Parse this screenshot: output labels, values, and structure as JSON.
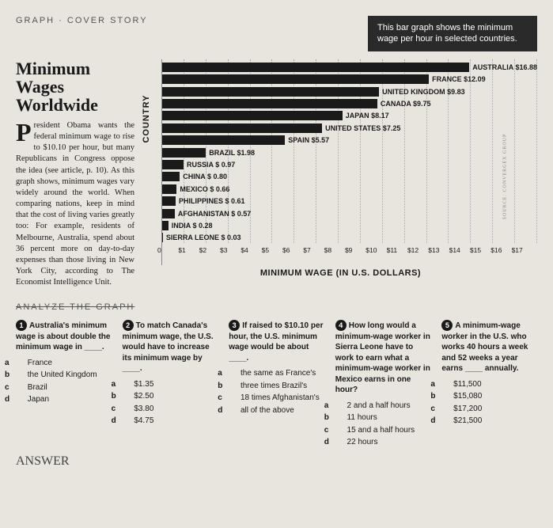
{
  "section_label": "GRAPH · COVER STORY",
  "callout": "This bar graph shows the minimum wage per hour in selected countries.",
  "title_l1": "Minimum",
  "title_l2": "Wages",
  "title_l3": "Worldwide",
  "dropcap": "P",
  "body": "resident Obama wants the federal minimum wage to rise to $10.10 per hour, but many Republicans in Congress oppose the idea (see article, p. 10). As this graph shows, minimum wages vary widely around the world. When comparing nations, keep in mind that the cost of living varies greatly too: For example, residents of Melbourne, Australia, spend about 36 percent more on day-to-day expenses than those living in New York City, according to The Economist Intelligence Unit.",
  "chart": {
    "y_label": "COUNTRY",
    "x_label": "MINIMUM WAGE (IN U.S. DOLLARS)",
    "max": 17,
    "ticks": [
      "0",
      "$1",
      "$2",
      "$3",
      "$4",
      "$5",
      "$6",
      "$7",
      "$8",
      "$9",
      "$10",
      "$11",
      "$12",
      "$13",
      "$14",
      "$15",
      "$16",
      "$17"
    ],
    "bars": [
      {
        "label": "AUSTRALIA $16.88",
        "v": 16.88
      },
      {
        "label": "FRANCE $12.09",
        "v": 12.09
      },
      {
        "label": "UNITED KINGDOM $9.83",
        "v": 9.83
      },
      {
        "label": "CANADA $9.75",
        "v": 9.75
      },
      {
        "label": "JAPAN $8.17",
        "v": 8.17
      },
      {
        "label": "UNITED STATES $7.25",
        "v": 7.25
      },
      {
        "label": "SPAIN $5.57",
        "v": 5.57
      },
      {
        "label": "BRAZIL $1.98",
        "v": 1.98
      },
      {
        "label": "RUSSIA $ 0.97",
        "v": 0.97
      },
      {
        "label": "CHINA $ 0.80",
        "v": 0.8
      },
      {
        "label": "MEXICO $ 0.66",
        "v": 0.66
      },
      {
        "label": "PHILIPPINES $ 0.61",
        "v": 0.61
      },
      {
        "label": "AFGHANISTAN $ 0.57",
        "v": 0.57
      },
      {
        "label": "INDIA $ 0.28",
        "v": 0.28
      },
      {
        "label": "SIERRA LEONE $ 0.03",
        "v": 0.03
      }
    ],
    "source": "SOURCE: CONVERGEX GROUP",
    "bar_color": "#1a1a1a"
  },
  "analyze_header": "ANALYZE THE GRAPH",
  "q1": {
    "n": "1",
    "stem": "Australia's minimum wage is about double the minimum wage in ____.",
    "opts": [
      {
        "l": "a",
        "t": "France"
      },
      {
        "l": "b",
        "t": "the United Kingdom"
      },
      {
        "l": "c",
        "t": "Brazil"
      },
      {
        "l": "d",
        "t": "Japan"
      }
    ]
  },
  "q2": {
    "n": "2",
    "stem": "To match Canada's minimum wage, the U.S. would have to increase its minimum wage by ____.",
    "opts": [
      {
        "l": "a",
        "t": "$1.35"
      },
      {
        "l": "b",
        "t": "$2.50"
      },
      {
        "l": "c",
        "t": "$3.80"
      },
      {
        "l": "d",
        "t": "$4.75"
      }
    ]
  },
  "q3": {
    "n": "3",
    "stem": "If raised to $10.10 per hour, the U.S. minimum wage would be about ____.",
    "opts": [
      {
        "l": "a",
        "t": "the same as France's"
      },
      {
        "l": "b",
        "t": "three times Brazil's"
      },
      {
        "l": "c",
        "t": "18 times Afghanistan's"
      },
      {
        "l": "d",
        "t": "all of the above"
      }
    ]
  },
  "q4": {
    "n": "4",
    "stem": "How long would a minimum-wage worker in Sierra Leone have to work to earn what a minimum-wage worker in Mexico earns in one hour?",
    "opts": [
      {
        "l": "a",
        "t": "2 and a half hours"
      },
      {
        "l": "b",
        "t": "11 hours"
      },
      {
        "l": "c",
        "t": "15 and a half hours"
      },
      {
        "l": "d",
        "t": "22 hours"
      }
    ]
  },
  "q5": {
    "n": "5",
    "stem": "A minimum-wage worker in the U.S. who works 40 hours a week and 52 weeks a year earns ____ annually.",
    "opts": [
      {
        "l": "a",
        "t": "$11,500"
      },
      {
        "l": "b",
        "t": "$15,080"
      },
      {
        "l": "c",
        "t": "$17,200"
      },
      {
        "l": "d",
        "t": "$21,500"
      }
    ]
  },
  "handwrite": "ANSWER",
  "side_marker": "C("
}
